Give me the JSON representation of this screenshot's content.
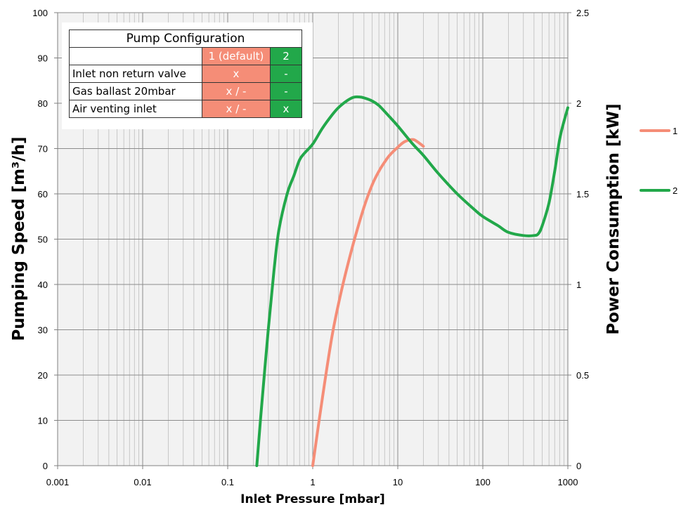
{
  "chart_data": {
    "type": "line",
    "title": "",
    "xlabel": "Inlet Pressure [mbar]",
    "ylabel": "Pumping Speed [m³/h]",
    "y2label": "Power Consumption [kW]",
    "xscale": "log",
    "xlim": [
      0.001,
      1000
    ],
    "ylim": [
      0,
      100
    ],
    "y2lim": [
      0,
      2.5
    ],
    "x_ticks": [
      "0.001",
      "0.01",
      "0.1",
      "1",
      "10",
      "100",
      "1000"
    ],
    "y_ticks": [
      "0",
      "10",
      "20",
      "30",
      "40",
      "50",
      "60",
      "70",
      "80",
      "90",
      "100"
    ],
    "y2_ticks": [
      "0",
      "0.5",
      "1",
      "1.5",
      "2",
      "2.5"
    ],
    "grid": true,
    "legend_position": "right",
    "series": [
      {
        "name": "1",
        "color": "#f58d77",
        "x": [
          1,
          1.3,
          1.7,
          2.2,
          3,
          4,
          5,
          6,
          7,
          8,
          10,
          12,
          15,
          17,
          20
        ],
        "y": [
          0,
          15,
          29,
          39,
          49,
          57,
          62,
          65,
          67,
          68.5,
          70.3,
          71.5,
          72,
          71.5,
          70.5
        ]
      },
      {
        "name": "2",
        "color": "#22a84a",
        "x": [
          0.22,
          0.25,
          0.3,
          0.35,
          0.4,
          0.5,
          0.6,
          0.7,
          0.8,
          1,
          1.3,
          1.7,
          2,
          2.5,
          3,
          3.5,
          4,
          5,
          6,
          8,
          10,
          15,
          20,
          30,
          50,
          80,
          100,
          150,
          200,
          300,
          400,
          450,
          500,
          600,
          700,
          800,
          900,
          1000
        ],
        "y": [
          0,
          13,
          30,
          43,
          52,
          60,
          64,
          67.5,
          69,
          71,
          74.5,
          77.5,
          79,
          80.5,
          81.3,
          81.4,
          81.2,
          80.5,
          79.5,
          77,
          75,
          71,
          68.5,
          64.5,
          60,
          56.5,
          55,
          53,
          51.5,
          50.8,
          50.8,
          51.2,
          53,
          58,
          65,
          72,
          76,
          79
        ]
      }
    ]
  },
  "config_table": {
    "title": "Pump Configuration",
    "col1_header": "1 (default)",
    "col2_header": "2",
    "rows": [
      {
        "label": "Inlet non return valve",
        "c1": "x",
        "c2": "-"
      },
      {
        "label": "Gas ballast 20mbar",
        "c1": "x / -",
        "c2": "-"
      },
      {
        "label": "Air venting inlet",
        "c1": "x / -",
        "c2": "x"
      }
    ]
  }
}
